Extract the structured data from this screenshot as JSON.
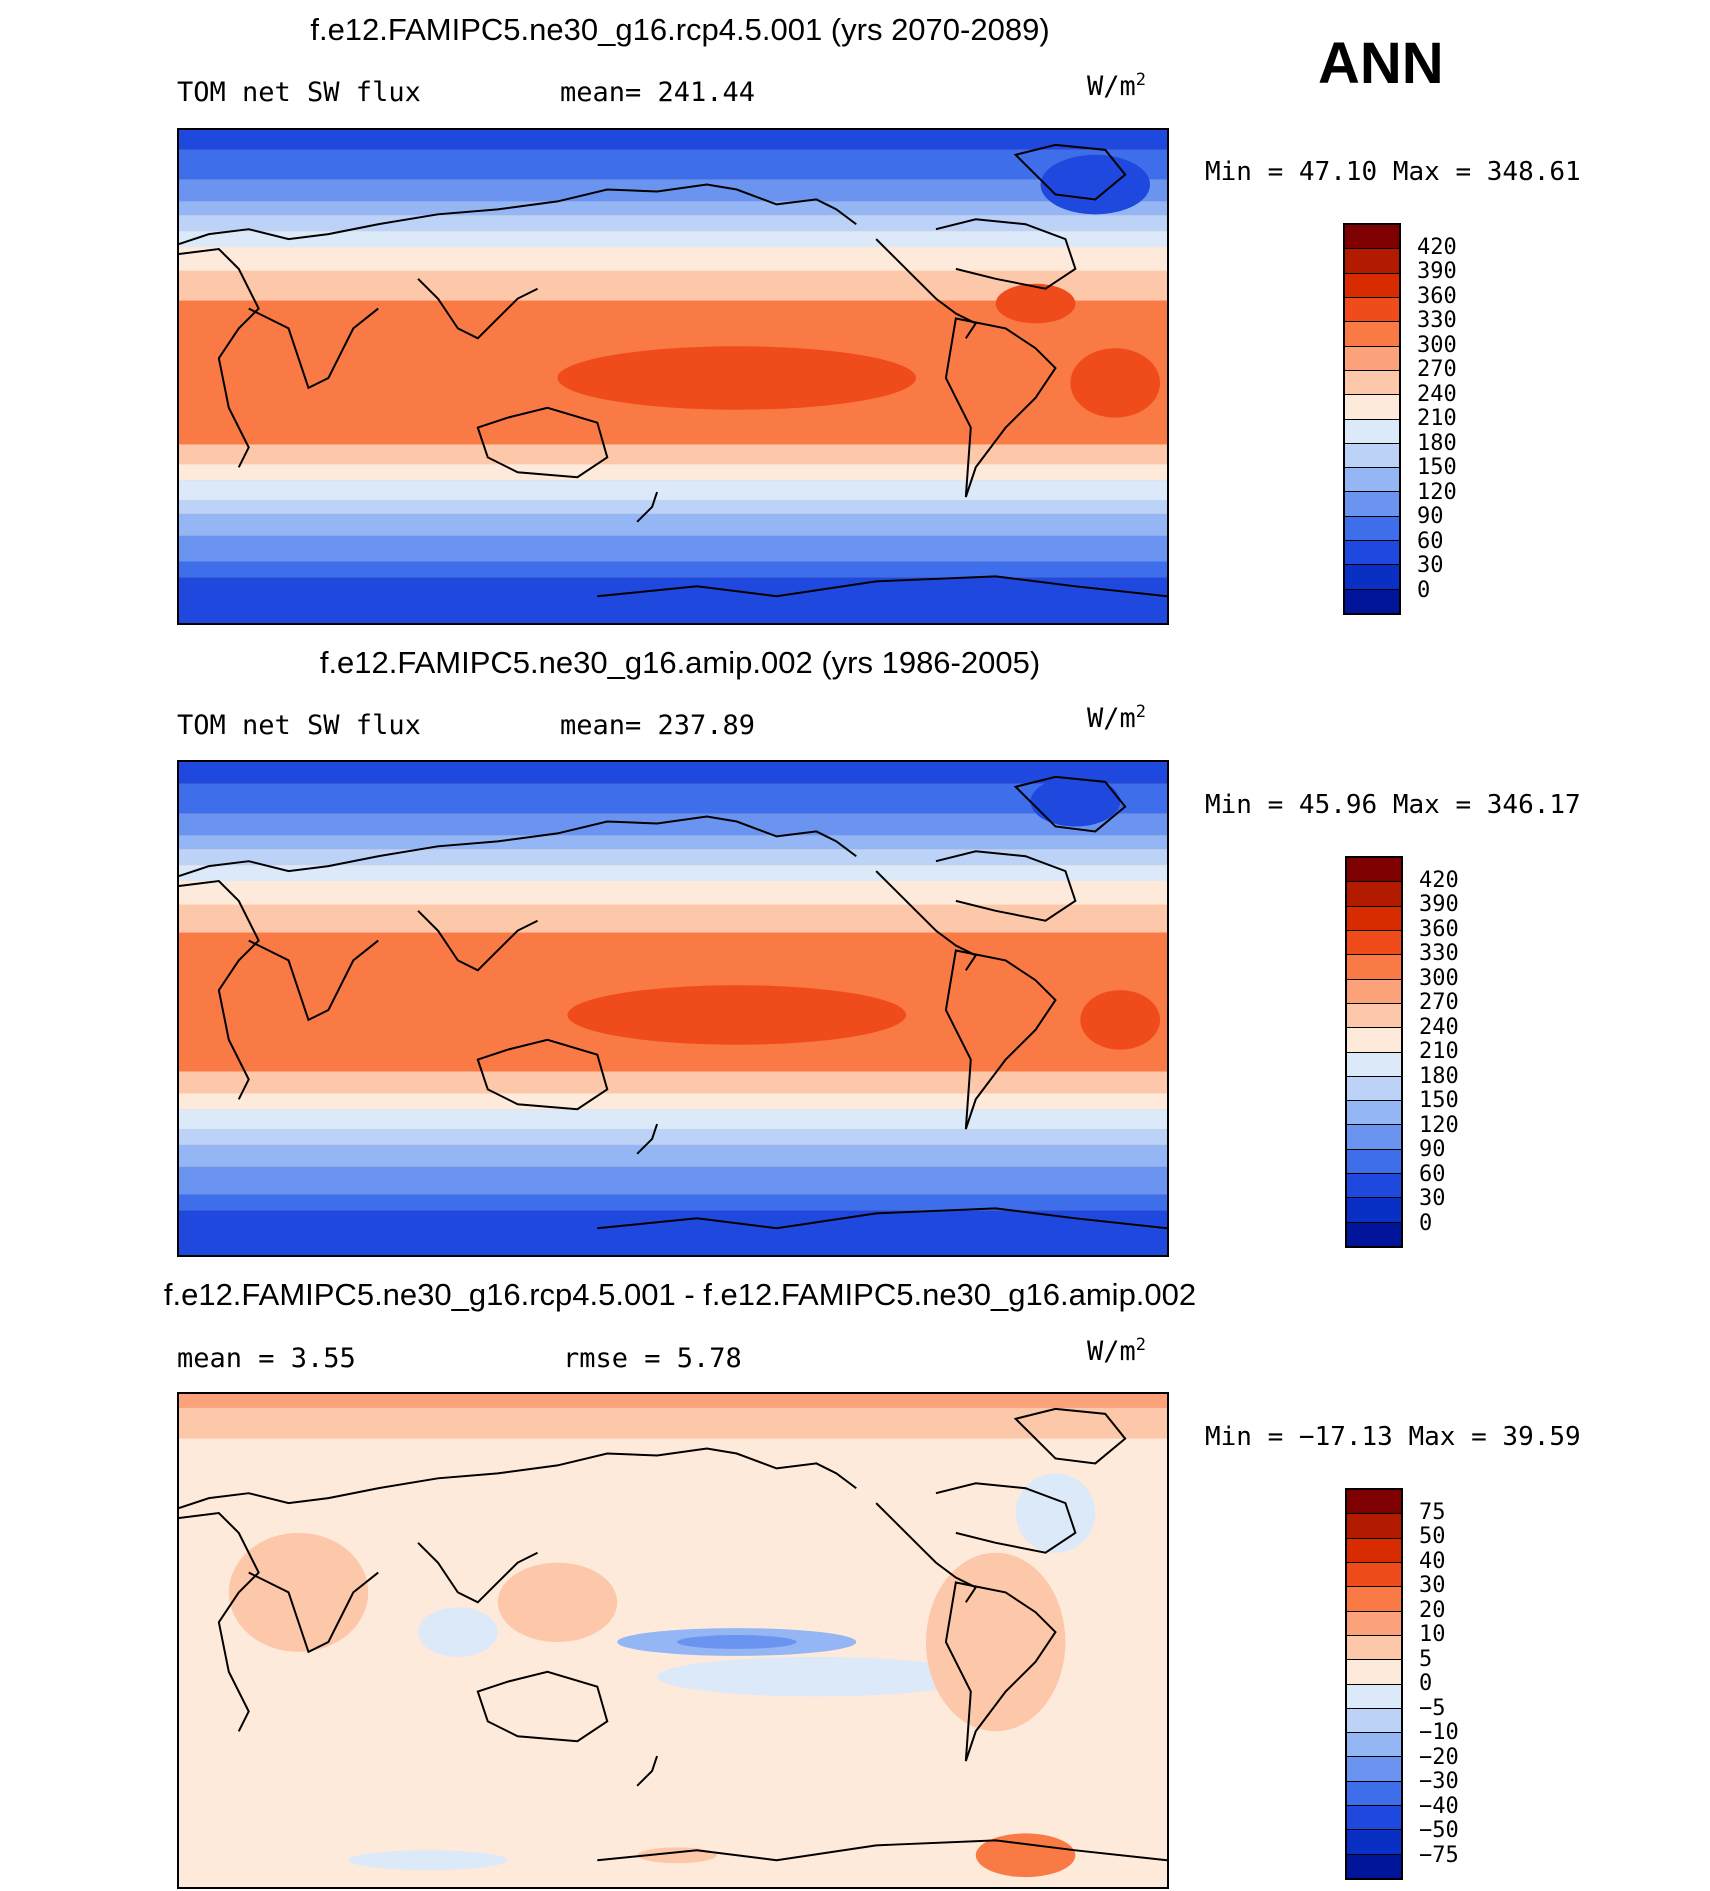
{
  "season": "ANN",
  "units": "W/m",
  "units_exp": "2",
  "panels": [
    {
      "title": "f.e12.FAMIPC5.ne30_g16.rcp4.5.001 (yrs 2070-2089)",
      "left_label": "TOM net SW flux",
      "center_label": "mean= 241.44",
      "minmax": "Min =   47.10 Max = 348.61"
    },
    {
      "title": "f.e12.FAMIPC5.ne30_g16.amip.002 (yrs 1986-2005)",
      "left_label": "TOM net SW flux",
      "center_label": "mean= 237.89",
      "minmax": "Min =   45.96 Max = 346.17"
    },
    {
      "title": "f.e12.FAMIPC5.ne30_g16.rcp4.5.001 - f.e12.FAMIPC5.ne30_g16.amip.002",
      "left_label": "mean =    3.55",
      "center_label": "rmse =    5.78",
      "minmax": "Min = −17.13 Max =   39.59"
    }
  ],
  "colorbars": {
    "abs_levels": [
      "420",
      "390",
      "360",
      "330",
      "300",
      "270",
      "240",
      "210",
      "180",
      "150",
      "120",
      "90",
      "60",
      "30",
      "0"
    ],
    "diff_levels": [
      "75",
      "50",
      "40",
      "30",
      "20",
      "10",
      "5",
      "0",
      "−5",
      "−10",
      "−20",
      "−30",
      "−40",
      "−50",
      "−75"
    ],
    "colors": [
      "#7f0000",
      "#b31b00",
      "#d92b00",
      "#f04b1a",
      "#f97a45",
      "#fca27a",
      "#fdc8aa",
      "#feeadb",
      "#dce9f8",
      "#bcd2f7",
      "#94b6f5",
      "#6a94f0",
      "#3e6ee9",
      "#1f48df",
      "#0a2fc4",
      "#00159a"
    ]
  }
}
